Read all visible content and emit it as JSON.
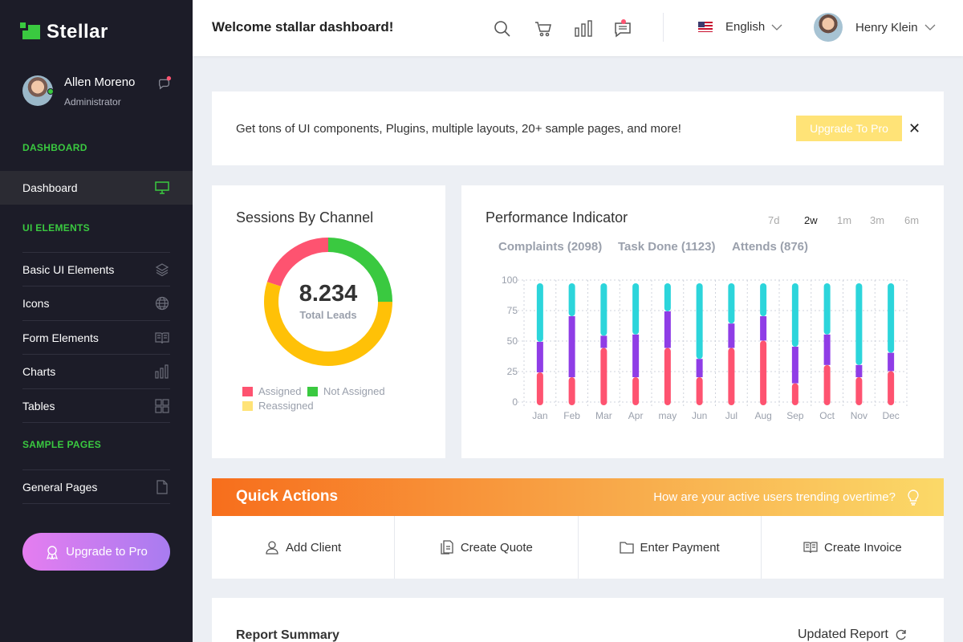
{
  "app": {
    "name": "Stellar"
  },
  "sidebar": {
    "profile": {
      "name": "Allen Moreno",
      "role": "Administrator"
    },
    "sections": [
      {
        "title": "DASHBOARD"
      },
      {
        "title": "UI ELEMENTS"
      },
      {
        "title": "SAMPLE PAGES"
      }
    ],
    "items": [
      {
        "label": "Dashboard",
        "icon": "monitor-icon",
        "active": true
      },
      {
        "label": "Basic UI Elements",
        "icon": "layers-icon"
      },
      {
        "label": "Icons",
        "icon": "globe-icon"
      },
      {
        "label": "Form Elements",
        "icon": "book-icon"
      },
      {
        "label": "Charts",
        "icon": "chart-bars-icon"
      },
      {
        "label": "Tables",
        "icon": "grid-icon"
      },
      {
        "label": "General Pages",
        "icon": "file-icon"
      }
    ],
    "upgrade_label": "Upgrade to Pro"
  },
  "topbar": {
    "title": "Welcome stallar dashboard!",
    "language": "English",
    "user": "Henry Klein"
  },
  "banner": {
    "text": "Get tons of UI components, Plugins, multiple layouts, 20+ sample pages, and more!",
    "button": "Upgrade To Pro"
  },
  "sessions": {
    "title": "Sessions By Channel",
    "total_value": "8.234",
    "total_label": "Total Leads",
    "legend": [
      {
        "label": "Assigned",
        "color": "#fe5370"
      },
      {
        "label": "Not Assigned",
        "color": "#3ac940"
      },
      {
        "label": "Reassigned",
        "color": "#ffe377"
      }
    ]
  },
  "performance": {
    "title": "Performance Indicator",
    "ranges": [
      "7d",
      "2w",
      "1m",
      "3m",
      "6m"
    ],
    "active_range": "2w",
    "legend": [
      "Complaints (2098)",
      "Task Done (1123)",
      "Attends (876)"
    ]
  },
  "chart_data": [
    {
      "type": "pie",
      "title": "Sessions By Channel",
      "labels": [
        "Assigned",
        "Not Assigned",
        "Reassigned"
      ],
      "values": [
        20,
        25,
        55
      ],
      "colors": [
        "#fe5370",
        "#3ac940",
        "#ffc107"
      ]
    },
    {
      "type": "bar",
      "stacked": true,
      "title": "Performance Indicator",
      "categories": [
        "Jan",
        "Feb",
        "Mar",
        "Apr",
        "may",
        "Jun",
        "Jul",
        "Aug",
        "Sep",
        "Oct",
        "Nov",
        "Dec"
      ],
      "yticks": [
        0,
        25,
        50,
        75,
        100
      ],
      "ylim": [
        0,
        100
      ],
      "series": [
        {
          "name": "Complaints",
          "color": "#fe5370",
          "values": [
            27,
            23,
            47,
            23,
            47,
            23,
            47,
            53,
            18,
            33,
            23,
            28
          ]
        },
        {
          "name": "Task Done",
          "color": "#8f3de6",
          "values": [
            25,
            50,
            10,
            35,
            30,
            15,
            20,
            20,
            30,
            25,
            10,
            15
          ]
        },
        {
          "name": "Attends",
          "color": "#2cd5db",
          "values": [
            48,
            27,
            43,
            42,
            23,
            62,
            33,
            27,
            52,
            42,
            67,
            57
          ]
        }
      ]
    }
  ],
  "quick_actions": {
    "title": "Quick Actions",
    "question": "How are your active users trending overtime?",
    "items": [
      {
        "label": "Add Client",
        "icon": "user-icon"
      },
      {
        "label": "Create Quote",
        "icon": "document-icon"
      },
      {
        "label": "Enter Payment",
        "icon": "folder-icon"
      },
      {
        "label": "Create Invoice",
        "icon": "book-icon"
      }
    ]
  },
  "report": {
    "title": "Report Summary",
    "link": "Updated Report"
  }
}
